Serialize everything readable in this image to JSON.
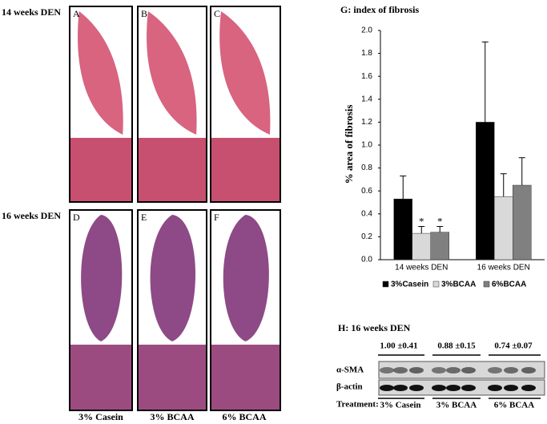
{
  "histology": {
    "rows": [
      "14 weeks DEN",
      "16 weeks DEN"
    ],
    "panels": [
      "A",
      "B",
      "C",
      "D",
      "E",
      "F"
    ],
    "groups": [
      "3% Casein",
      "3% BCAA",
      "6% BCAA"
    ]
  },
  "chart_data": {
    "type": "bar",
    "title": "G: index of fibrosis",
    "y_label": "% area of fibrosis",
    "categories": [
      "14 weeks DEN",
      "16 weeks DEN"
    ],
    "series": [
      {
        "name": "3%Casein",
        "color": "#000000",
        "values": [
          0.53,
          1.2
        ],
        "errors": [
          0.2,
          0.7
        ]
      },
      {
        "name": "3%BCAA",
        "color": "#d9d9d9",
        "values": [
          0.23,
          0.55
        ],
        "errors": [
          0.06,
          0.2
        ]
      },
      {
        "name": "6%BCAA",
        "color": "#808080",
        "values": [
          0.24,
          0.65
        ],
        "errors": [
          0.05,
          0.24
        ]
      }
    ],
    "annotations": [
      "*",
      "*"
    ],
    "ylim": [
      0,
      2
    ],
    "yticks": [
      {
        "value": 0,
        "label": "0.0"
      },
      0.2,
      0.4,
      0.6,
      0.8,
      {
        "value": 1,
        "label": "1.0"
      },
      1.2,
      1.4,
      1.6,
      1.8,
      {
        "value": 2,
        "label": "2.0"
      }
    ],
    "grid": false,
    "legend": "bottom"
  },
  "western_blot": {
    "title": "H: 16 weeks DEN",
    "quantification": [
      "1.00 ±0.41",
      "0.88 ±0.15",
      "0.74 ±0.07"
    ],
    "rows": [
      "α-SMA",
      "β-actin"
    ],
    "treatment_label": "Treatment:",
    "treatments": [
      "3% Casein",
      "3% BCAA",
      "6% BCAA"
    ]
  }
}
